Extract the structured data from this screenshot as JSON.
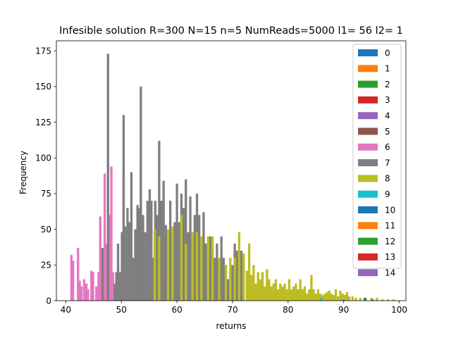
{
  "chart_data": {
    "type": "bar",
    "subtype": "stacked-histogram",
    "title": "Infesible solution R=300 N=15 n=5 NumReads=5000 l1= 56 l2= 1",
    "xlabel": "returns",
    "ylabel": "Frequency",
    "xlim": [
      38.3,
      101.2
    ],
    "ylim": [
      0,
      182
    ],
    "xticks": [
      40,
      50,
      60,
      70,
      80,
      90,
      100
    ],
    "yticks": [
      0,
      25,
      50,
      75,
      100,
      125,
      150,
      175
    ],
    "grid": false,
    "legend_position": "top-right",
    "legend": [
      "0",
      "1",
      "2",
      "3",
      "4",
      "5",
      "6",
      "7",
      "8",
      "9",
      "10",
      "11",
      "12",
      "13",
      "14"
    ],
    "colors": [
      "#1f77b4",
      "#ff7f0e",
      "#2ca02c",
      "#d62728",
      "#9467bd",
      "#8c564b",
      "#e377c2",
      "#7f7f7f",
      "#bcbd22",
      "#17becf",
      "#1f77b4",
      "#ff7f0e",
      "#2ca02c",
      "#d62728",
      "#9467bd"
    ],
    "series": [
      {
        "name": "6",
        "color": "#e377c2",
        "points": [
          [
            41.0,
            32
          ],
          [
            41.3,
            28
          ],
          [
            42.2,
            37
          ],
          [
            42.5,
            14
          ],
          [
            42.8,
            10
          ],
          [
            43.3,
            15
          ],
          [
            43.7,
            12
          ],
          [
            44.0,
            8
          ],
          [
            44.6,
            21
          ],
          [
            44.9,
            20
          ],
          [
            45.5,
            10
          ],
          [
            45.9,
            20
          ],
          [
            46.2,
            59
          ],
          [
            46.6,
            7
          ],
          [
            47.0,
            89
          ],
          [
            47.3,
            40
          ],
          [
            47.6,
            170
          ],
          [
            47.9,
            60
          ],
          [
            48.2,
            94
          ],
          [
            48.5,
            20
          ],
          [
            48.8,
            8
          ],
          [
            49.1,
            18
          ],
          [
            49.4,
            25
          ],
          [
            49.8,
            20
          ],
          [
            50.1,
            22
          ],
          [
            50.4,
            90
          ],
          [
            50.7,
            20
          ],
          [
            51.1,
            10
          ],
          [
            51.5,
            10
          ],
          [
            52.0,
            10
          ],
          [
            52.5,
            14
          ],
          [
            52.9,
            35
          ],
          [
            53.2,
            40
          ],
          [
            53.5,
            95
          ],
          [
            53.9,
            10
          ],
          [
            54.3,
            28
          ],
          [
            54.7,
            40
          ],
          [
            55.1,
            31
          ],
          [
            55.6,
            24
          ],
          [
            56.0,
            22
          ],
          [
            56.4,
            27
          ],
          [
            56.8,
            15
          ],
          [
            57.2,
            25
          ],
          [
            57.7,
            19
          ],
          [
            58.3,
            25
          ],
          [
            58.8,
            15
          ],
          [
            59.5,
            25
          ],
          [
            60.2,
            10
          ]
        ]
      },
      {
        "name": "7",
        "color": "#7f7f7f",
        "points": [
          [
            46.6,
            37
          ],
          [
            47.6,
            173
          ],
          [
            48.8,
            12
          ],
          [
            49.1,
            20
          ],
          [
            49.4,
            40
          ],
          [
            49.8,
            20
          ],
          [
            50.1,
            48
          ],
          [
            50.4,
            130
          ],
          [
            50.7,
            52
          ],
          [
            51.1,
            65
          ],
          [
            51.5,
            55
          ],
          [
            51.8,
            90
          ],
          [
            52.2,
            30
          ],
          [
            52.5,
            50
          ],
          [
            52.9,
            67
          ],
          [
            53.2,
            65
          ],
          [
            53.5,
            150
          ],
          [
            53.9,
            60
          ],
          [
            54.3,
            48
          ],
          [
            54.7,
            70
          ],
          [
            55.1,
            78
          ],
          [
            55.4,
            70
          ],
          [
            55.8,
            30
          ],
          [
            56.1,
            70
          ],
          [
            56.5,
            60
          ],
          [
            56.8,
            112
          ],
          [
            57.2,
            70
          ],
          [
            57.6,
            84
          ],
          [
            58.0,
            53
          ],
          [
            58.4,
            45
          ],
          [
            58.8,
            70
          ],
          [
            59.2,
            44
          ],
          [
            59.6,
            55
          ],
          [
            60.0,
            82
          ],
          [
            60.4,
            55
          ],
          [
            60.8,
            75
          ],
          [
            61.2,
            65
          ],
          [
            61.6,
            85
          ],
          [
            62.0,
            48
          ],
          [
            62.4,
            73
          ],
          [
            62.8,
            45
          ],
          [
            63.2,
            60
          ],
          [
            63.6,
            75
          ],
          [
            64.0,
            60
          ],
          [
            64.4,
            45
          ],
          [
            64.8,
            62
          ],
          [
            65.2,
            40
          ],
          [
            65.6,
            35
          ],
          [
            66.0,
            45
          ],
          [
            66.4,
            38
          ],
          [
            66.8,
            30
          ],
          [
            67.2,
            40
          ],
          [
            67.6,
            20
          ],
          [
            68.0,
            45
          ],
          [
            68.4,
            30
          ],
          [
            68.8,
            25
          ],
          [
            69.2,
            15
          ],
          [
            69.6,
            20
          ],
          [
            70.0,
            25
          ],
          [
            70.4,
            40
          ],
          [
            70.8,
            35
          ],
          [
            71.2,
            20
          ],
          [
            71.6,
            35
          ],
          [
            72.0,
            25
          ],
          [
            72.6,
            15
          ],
          [
            73.4,
            10
          ],
          [
            74.2,
            10
          ],
          [
            75.0,
            8
          ],
          [
            76.0,
            6
          ],
          [
            77.0,
            5
          ],
          [
            78.0,
            4
          ],
          [
            79.0,
            3
          ]
        ]
      },
      {
        "name": "8",
        "color": "#bcbd22",
        "points": [
          [
            56.0,
            50
          ],
          [
            56.8,
            45
          ],
          [
            58.4,
            50
          ],
          [
            59.2,
            52
          ],
          [
            60.8,
            60
          ],
          [
            61.6,
            40
          ],
          [
            62.8,
            48
          ],
          [
            63.6,
            48
          ],
          [
            64.4,
            45
          ],
          [
            65.6,
            45
          ],
          [
            66.4,
            45
          ],
          [
            67.6,
            30
          ],
          [
            68.8,
            25
          ],
          [
            69.6,
            30
          ],
          [
            70.4,
            30
          ],
          [
            71.2,
            48
          ],
          [
            72.0,
            33
          ],
          [
            72.6,
            21
          ],
          [
            73.0,
            40
          ],
          [
            73.4,
            18
          ],
          [
            73.8,
            25
          ],
          [
            74.2,
            12
          ],
          [
            74.6,
            20
          ],
          [
            75.0,
            15
          ],
          [
            75.4,
            20
          ],
          [
            75.8,
            10
          ],
          [
            76.2,
            22
          ],
          [
            76.6,
            15
          ],
          [
            77.0,
            10
          ],
          [
            77.4,
            12
          ],
          [
            77.8,
            15
          ],
          [
            78.2,
            8
          ],
          [
            78.6,
            12
          ],
          [
            79.0,
            10
          ],
          [
            79.4,
            12
          ],
          [
            79.8,
            8
          ],
          [
            80.2,
            15
          ],
          [
            80.6,
            8
          ],
          [
            81.0,
            10
          ],
          [
            81.4,
            12
          ],
          [
            81.8,
            8
          ],
          [
            82.2,
            15
          ],
          [
            82.6,
            8
          ],
          [
            83.0,
            10
          ],
          [
            83.4,
            5
          ],
          [
            83.8,
            8
          ],
          [
            84.2,
            18
          ],
          [
            84.6,
            8
          ],
          [
            85.0,
            5
          ],
          [
            85.4,
            8
          ],
          [
            85.8,
            5
          ],
          [
            86.2,
            4
          ],
          [
            86.6,
            5
          ],
          [
            87.0,
            6
          ],
          [
            87.4,
            7
          ],
          [
            87.8,
            5
          ],
          [
            88.2,
            4
          ],
          [
            88.6,
            8
          ],
          [
            89.0,
            3
          ],
          [
            89.4,
            7
          ],
          [
            89.8,
            5
          ],
          [
            90.2,
            4
          ],
          [
            90.6,
            6
          ],
          [
            91.0,
            3
          ],
          [
            91.6,
            3
          ],
          [
            92.2,
            2
          ],
          [
            93.0,
            2
          ],
          [
            94.0,
            2
          ],
          [
            95.0,
            2
          ],
          [
            96.0,
            2
          ],
          [
            97.0,
            1
          ],
          [
            98.0,
            1
          ],
          [
            99.0,
            1
          ]
        ]
      },
      {
        "name": "9",
        "color": "#17becf",
        "points": [
          [
            86.0,
            2
          ],
          [
            90.0,
            1
          ]
        ]
      },
      {
        "name": "0",
        "color": "#1f77b4",
        "points": [
          [
            93.8,
            2
          ],
          [
            95.2,
            1
          ]
        ]
      }
    ]
  }
}
